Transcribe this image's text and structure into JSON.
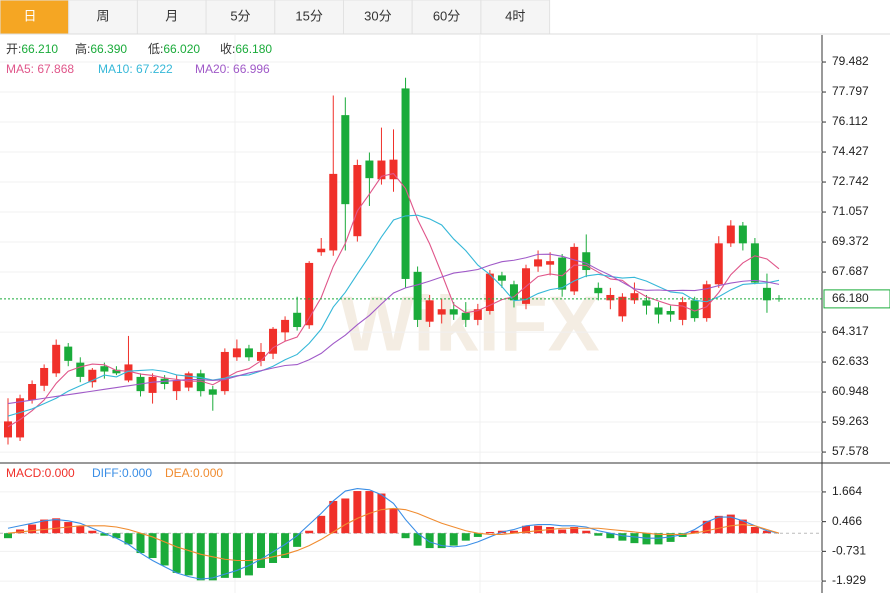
{
  "tabs": {
    "items": [
      "日",
      "周",
      "月",
      "5分",
      "15分",
      "30分",
      "60分",
      "4时"
    ],
    "active": 0,
    "active_color": "#f5a623"
  },
  "watermark": "WikiFX",
  "ohlc_header": {
    "value_color": "#1aab3a",
    "items": [
      {
        "label": "开:",
        "value": "66.210"
      },
      {
        "label": "高:",
        "value": "66.390"
      },
      {
        "label": "低:",
        "value": "66.020"
      },
      {
        "label": "收:",
        "value": "66.180"
      }
    ]
  },
  "chart_data": [
    {
      "type": "candlestick",
      "up_color": "#f0302a",
      "down_color": "#1aab3a",
      "open": [
        58.4,
        58.4,
        60.5,
        61.3,
        62.0,
        63.5,
        62.6,
        61.5,
        62.4,
        62.2,
        61.6,
        61.8,
        60.9,
        61.7,
        61.0,
        61.2,
        62.0,
        61.1,
        61.0,
        62.9,
        63.4,
        62.7,
        63.1,
        64.3,
        65.4,
        64.7,
        68.8,
        68.9,
        76.5,
        69.7,
        73.95,
        72.9,
        72.9,
        78.0,
        67.7,
        64.9,
        65.3,
        65.6,
        65.4,
        65.0,
        65.5,
        67.5,
        67.0,
        65.9,
        68.0,
        68.1,
        68.5,
        66.6,
        68.8,
        66.8,
        66.1,
        65.2,
        66.1,
        66.1,
        65.7,
        65.5,
        65.0,
        66.1,
        65.1,
        67.0,
        69.3,
        70.3,
        69.3,
        66.8,
        66.21
      ],
      "high": [
        60.6,
        60.8,
        61.6,
        62.5,
        63.9,
        63.7,
        62.9,
        62.3,
        62.6,
        62.4,
        64.1,
        62.0,
        62.0,
        61.9,
        61.9,
        62.1,
        62.2,
        61.3,
        63.4,
        63.9,
        63.6,
        63.7,
        64.6,
        65.2,
        66.3,
        68.3,
        69.6,
        77.6,
        77.5,
        74.0,
        74.4,
        75.8,
        75.7,
        78.6,
        68.0,
        66.4,
        66.2,
        66.0,
        66.0,
        65.9,
        67.8,
        67.7,
        67.2,
        68.1,
        68.9,
        68.8,
        68.7,
        69.3,
        69.8,
        67.1,
        66.8,
        66.5,
        67.1,
        66.4,
        66.0,
        65.8,
        66.3,
        66.3,
        67.2,
        69.7,
        70.6,
        70.5,
        69.6,
        67.6,
        66.39
      ],
      "low": [
        58.0,
        58.2,
        60.3,
        61.0,
        61.8,
        62.4,
        61.5,
        61.2,
        61.7,
        61.9,
        61.5,
        60.7,
        60.3,
        61.1,
        60.5,
        61.0,
        60.7,
        59.9,
        60.8,
        62.7,
        62.7,
        62.4,
        62.8,
        63.8,
        64.4,
        64.5,
        68.6,
        68.6,
        68.9,
        69.4,
        71.4,
        72.6,
        72.2,
        66.8,
        64.6,
        64.6,
        64.8,
        65.0,
        64.6,
        64.7,
        65.3,
        66.8,
        65.7,
        65.6,
        67.7,
        67.5,
        66.3,
        66.4,
        67.4,
        66.1,
        65.6,
        64.9,
        65.9,
        65.3,
        64.8,
        64.9,
        64.7,
        64.9,
        64.9,
        66.8,
        69.1,
        68.9,
        67.0,
        65.4,
        66.02
      ],
      "close": [
        59.3,
        60.6,
        61.4,
        62.3,
        63.6,
        62.7,
        61.8,
        62.2,
        62.1,
        62.0,
        62.5,
        61.0,
        61.8,
        61.4,
        61.6,
        62.0,
        61.0,
        60.8,
        63.2,
        63.4,
        62.9,
        63.2,
        64.5,
        65.0,
        64.6,
        68.2,
        69.0,
        73.2,
        71.5,
        73.7,
        72.96,
        73.95,
        74.0,
        67.3,
        65.0,
        66.1,
        65.6,
        65.3,
        65.0,
        65.6,
        67.6,
        67.2,
        66.1,
        67.9,
        68.4,
        68.3,
        66.7,
        69.1,
        67.8,
        66.5,
        66.4,
        66.3,
        66.5,
        65.8,
        65.3,
        65.3,
        66.0,
        65.1,
        67.0,
        69.3,
        70.3,
        69.3,
        67.1,
        66.1,
        66.18
      ],
      "series": [
        {
          "name": "MA5: 67.868",
          "color": "#e0568a",
          "values": [
            59.0,
            59.4,
            59.9,
            60.5,
            61.44,
            62.12,
            62.36,
            62.52,
            62.48,
            62.16,
            62.12,
            61.96,
            61.88,
            61.74,
            61.66,
            61.56,
            61.56,
            61.36,
            61.72,
            62.08,
            62.26,
            62.7,
            63.44,
            63.8,
            64.04,
            65.1,
            66.26,
            68.0,
            69.3,
            71.12,
            72.07,
            73.06,
            73.22,
            72.38,
            70.64,
            69.27,
            67.6,
            65.86,
            65.4,
            65.52,
            65.82,
            66.14,
            66.3,
            66.88,
            67.44,
            67.58,
            67.48,
            68.08,
            68.06,
            67.68,
            67.3,
            67.22,
            66.7,
            66.3,
            66.06,
            65.84,
            65.78,
            65.5,
            65.74,
            66.54,
            67.54,
            68.2,
            68.6,
            68.42,
            67.868
          ]
        },
        {
          "name": "MA10: 67.222",
          "color": "#36b8d8",
          "values": [
            59.6,
            59.8,
            60.0,
            60.3,
            60.6,
            61.0,
            61.3,
            61.6,
            61.9,
            61.8,
            62.12,
            62.16,
            62.2,
            62.11,
            61.91,
            61.84,
            61.76,
            61.62,
            61.73,
            61.87,
            61.91,
            62.13,
            62.4,
            62.76,
            63.06,
            63.68,
            64.48,
            65.72,
            66.55,
            67.58,
            68.59,
            69.66,
            70.61,
            70.84,
            70.88,
            70.67,
            70.33,
            69.54,
            68.89,
            68.08,
            67.55,
            66.87,
            66.08,
            66.14,
            66.48,
            66.7,
            66.81,
            67.19,
            67.47,
            67.56,
            67.44,
            67.35,
            67.39,
            67.18,
            66.87,
            66.57,
            66.5,
            66.1,
            66.02,
            66.3,
            66.69,
            66.99,
            67.05,
            67.08,
            67.222
          ]
        },
        {
          "name": "MA20: 66.996",
          "color": "#a05ac8",
          "values": [
            60.3,
            60.4,
            60.5,
            60.6,
            60.7,
            60.8,
            60.9,
            61.0,
            61.1,
            61.2,
            61.3,
            61.4,
            61.5,
            61.55,
            61.6,
            61.65,
            61.65,
            61.6,
            61.65,
            61.84,
            62.02,
            62.15,
            62.3,
            62.44,
            62.49,
            62.76,
            63.12,
            63.67,
            64.14,
            64.73,
            65.25,
            65.9,
            66.51,
            66.8,
            66.97,
            67.18,
            67.41,
            67.63,
            67.72,
            67.83,
            68.07,
            68.27,
            68.35,
            68.49,
            68.68,
            68.69,
            68.57,
            68.37,
            68.18,
            67.82,
            67.5,
            67.11,
            66.74,
            66.66,
            66.68,
            66.64,
            66.66,
            66.65,
            66.75,
            66.93,
            67.07,
            67.17,
            67.22,
            67.13,
            66.996
          ]
        }
      ],
      "last_price": {
        "value": 66.18,
        "label": "66.180",
        "color": "#1aab3a"
      },
      "ylim": [
        57.02,
        81.0
      ],
      "yticks": [
        79.482,
        77.797,
        76.112,
        74.427,
        72.742,
        71.057,
        69.372,
        67.687,
        64.317,
        62.633,
        60.948,
        59.263,
        57.578
      ],
      "grid": true
    },
    {
      "type": "macd",
      "up_color": "#f0302a",
      "down_color": "#1aab3a",
      "series": [
        {
          "name": "MACD:0.000",
          "kind": "bar",
          "color": "#f0302a",
          "values": [
            -0.2,
            0.15,
            0.35,
            0.55,
            0.6,
            0.45,
            0.3,
            0.1,
            -0.1,
            -0.2,
            -0.45,
            -0.8,
            -1.0,
            -1.3,
            -1.6,
            -1.7,
            -1.9,
            -1.9,
            -1.8,
            -1.8,
            -1.7,
            -1.4,
            -1.2,
            -1.0,
            -0.55,
            0.1,
            0.7,
            1.3,
            1.4,
            1.7,
            1.7,
            1.6,
            1.0,
            -0.2,
            -0.5,
            -0.6,
            -0.6,
            -0.5,
            -0.3,
            -0.15,
            0.05,
            0.1,
            0.1,
            0.3,
            0.3,
            0.25,
            0.15,
            0.25,
            0.1,
            -0.1,
            -0.2,
            -0.3,
            -0.4,
            -0.45,
            -0.45,
            -0.35,
            -0.15,
            0.1,
            0.5,
            0.7,
            0.75,
            0.55,
            0.25,
            0.1,
            0.0
          ]
        },
        {
          "name": "DIFF:0.000",
          "kind": "line",
          "color": "#3a8ee6",
          "values": [
            0.2,
            0.3,
            0.4,
            0.5,
            0.55,
            0.5,
            0.4,
            0.2,
            0.0,
            -0.2,
            -0.45,
            -0.8,
            -1.1,
            -1.35,
            -1.6,
            -1.75,
            -1.85,
            -1.8,
            -1.65,
            -1.5,
            -1.3,
            -1.05,
            -0.75,
            -0.45,
            -0.1,
            0.35,
            0.8,
            1.3,
            1.7,
            1.8,
            1.75,
            1.55,
            1.2,
            0.55,
            0.0,
            -0.35,
            -0.5,
            -0.55,
            -0.5,
            -0.35,
            -0.15,
            0.05,
            0.15,
            0.3,
            0.35,
            0.35,
            0.3,
            0.3,
            0.25,
            0.1,
            0.0,
            -0.1,
            -0.15,
            -0.2,
            -0.2,
            -0.15,
            -0.05,
            0.15,
            0.45,
            0.65,
            0.65,
            0.5,
            0.3,
            0.1,
            0.0
          ]
        },
        {
          "name": "DEA:0.000",
          "kind": "line",
          "color": "#f08c30",
          "values": [
            0.0,
            0.05,
            0.1,
            0.15,
            0.2,
            0.25,
            0.3,
            0.3,
            0.3,
            0.25,
            0.15,
            0.0,
            -0.15,
            -0.35,
            -0.55,
            -0.7,
            -0.85,
            -0.95,
            -1.05,
            -1.1,
            -1.1,
            -1.05,
            -0.95,
            -0.85,
            -0.7,
            -0.5,
            -0.25,
            0.05,
            0.35,
            0.6,
            0.8,
            0.95,
            1.0,
            0.95,
            0.8,
            0.6,
            0.4,
            0.25,
            0.1,
            0.0,
            -0.05,
            -0.05,
            0.0,
            0.05,
            0.1,
            0.15,
            0.2,
            0.2,
            0.2,
            0.2,
            0.15,
            0.1,
            0.05,
            0.0,
            -0.05,
            -0.05,
            -0.05,
            0.0,
            0.1,
            0.2,
            0.3,
            0.35,
            0.3,
            0.15,
            0.0
          ]
        }
      ],
      "ylim": [
        -2.41,
        2.79
      ],
      "yticks": [
        1.664,
        0.466,
        -0.731,
        -1.929
      ],
      "grid": true
    }
  ]
}
